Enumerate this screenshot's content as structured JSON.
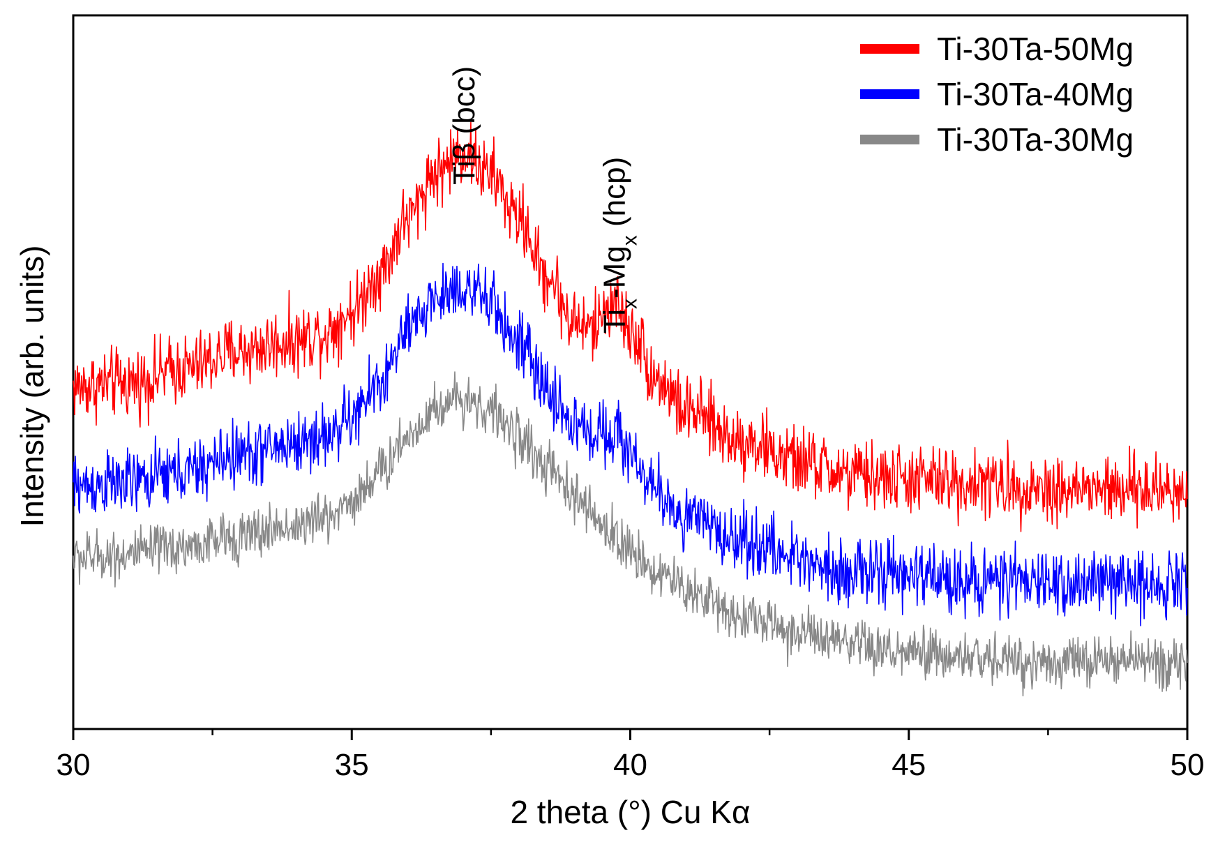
{
  "chart_data": {
    "type": "line",
    "xlabel": "2 theta (°) Cu Kα",
    "ylabel": "Intensity (arb. units)",
    "xlim": [
      30,
      50
    ],
    "ylim": [
      0,
      100
    ],
    "x_ticks": [
      "30",
      "35",
      "40",
      "45",
      "50"
    ],
    "x_minor_ticks": [
      32.5,
      37.5,
      42.5,
      47.5
    ],
    "y_ticks_shown": false,
    "grid": false,
    "legend_position": "top-right",
    "series": [
      {
        "name": "Ti-30Ta-50Mg",
        "color": "#ff0000",
        "noise": 3.0,
        "x": [
          30,
          31,
          32,
          33,
          34,
          34.5,
          35,
          35.5,
          36,
          36.5,
          37,
          37.5,
          38,
          38.5,
          39,
          39.3,
          39.7,
          40,
          40.5,
          41,
          42,
          43,
          44,
          45,
          46,
          47,
          48,
          49,
          50
        ],
        "y": [
          48,
          48.5,
          50.5,
          53,
          54.5,
          55.5,
          58.5,
          64,
          71.5,
          78,
          81,
          77.5,
          71.5,
          63.5,
          57,
          56,
          60,
          56,
          49,
          44.5,
          40.5,
          37.5,
          35.5,
          35,
          34.5,
          34,
          33.5,
          33.5,
          33.5
        ]
      },
      {
        "name": "Ti-30Ta-40Mg",
        "color": "#0000ff",
        "noise": 2.8,
        "x": [
          30,
          31,
          32,
          33,
          34,
          34.5,
          35,
          35.5,
          36,
          36.5,
          37,
          37.5,
          38,
          38.5,
          39,
          39.3,
          39.7,
          40,
          40.5,
          41,
          42,
          43,
          44,
          45,
          46,
          47,
          48,
          49,
          50
        ],
        "y": [
          34,
          34.5,
          36,
          38.5,
          40,
          41,
          43.5,
          48.5,
          55.5,
          60.5,
          62,
          59.5,
          54,
          47.5,
          42.5,
          41.5,
          42,
          38.5,
          33,
          29.5,
          26.5,
          24,
          22,
          21.5,
          21,
          20.5,
          20.5,
          20.5,
          20.5
        ]
      },
      {
        "name": "Ti-30Ta-30Mg",
        "color": "#888888",
        "noise": 2.2,
        "x": [
          30,
          31,
          32,
          33,
          34,
          34.5,
          35,
          35.5,
          36,
          36.5,
          37,
          37.5,
          38,
          38.5,
          39,
          39.5,
          40,
          40.5,
          41,
          42,
          43,
          44,
          45,
          46,
          47,
          48,
          49,
          50
        ],
        "y": [
          24,
          24.5,
          25.5,
          27,
          28.5,
          29.5,
          32,
          36,
          41,
          45,
          46.5,
          44.5,
          41,
          36.5,
          32.5,
          28.5,
          25,
          22,
          19.5,
          16,
          13.5,
          11.5,
          10.5,
          10,
          9.5,
          9.5,
          9.5,
          9.5
        ]
      }
    ],
    "annotations": [
      {
        "id": "ti-beta",
        "base": "Tiβ",
        "suffix": " (bcc)",
        "x": 37.0
      },
      {
        "id": "ti-mg",
        "parts": [
          "Ti",
          "x",
          "-Mg",
          "x",
          " (hcp)"
        ],
        "x": 39.7
      }
    ]
  }
}
